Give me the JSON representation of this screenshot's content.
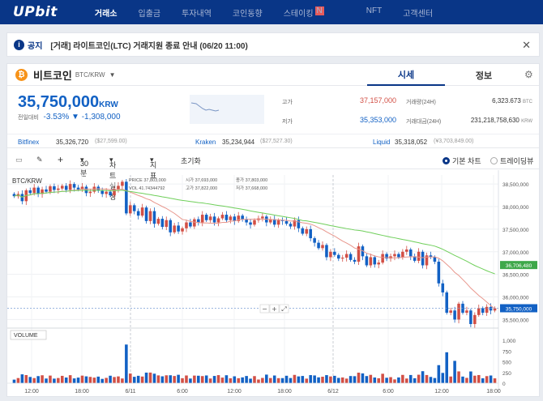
{
  "brand": "UPbit",
  "nav": [
    "거래소",
    "입출금",
    "투자내역",
    "코인동향",
    "스테이킹",
    "NFT",
    "고객센터"
  ],
  "nav_badge": "N",
  "notice": {
    "label": "공지",
    "text": "[거래] 라이트코인(LTC) 거래지원 종료 안내 (06/20 11:00)",
    "icon": "i",
    "close": "✕"
  },
  "coin": {
    "name": "비트코인",
    "pair": "BTC/KRW",
    "symbol": "₿"
  },
  "tabs": [
    "시세",
    "정보"
  ],
  "price": {
    "value": "35,750,000",
    "unit": "KRW",
    "label": "전일대비",
    "pct": "-3.53%",
    "chg": "▼ -1,308,000"
  },
  "stats": {
    "high_label": "고가",
    "high": "37,157,000",
    "low_label": "저가",
    "low": "35,353,000",
    "vol_label": "거래량(24H)",
    "vol": "6,323.673",
    "vol_unit": "BTC",
    "amt_label": "거래대금(24H)",
    "amt": "231,218,758,630",
    "amt_unit": "KRW"
  },
  "exchanges": [
    {
      "name": "Bitfinex",
      "value": "35,326,720",
      "usd": "($27,599.00)"
    },
    {
      "name": "Kraken",
      "value": "35,234,944",
      "usd": "($27,527.30)"
    },
    {
      "name": "Liquid",
      "value": "35,318,052",
      "usd": "(¥3,703,849.00)"
    }
  ],
  "toolbar": {
    "interval": "30분",
    "chart_settings": "차트설정",
    "indicator": "지표",
    "reset": "초기화",
    "basic": "기본 차트",
    "tradingview": "트레이딩뷰"
  },
  "chart_data": {
    "type": "candlestick",
    "pair_label": "BTC/KRW",
    "ohlc_labels": {
      "price": "PRICE",
      "price_val": "37,803,000",
      "open": "시가",
      "open_val": "37,693,000",
      "close": "종가",
      "close_val": "37,803,000",
      "vol": "VOL",
      "vol_val": "41.74344792",
      "high": "고가",
      "high_val": "37,822,000",
      "low": "저가",
      "low_val": "37,668,000"
    },
    "y_ticks": [
      "38,500,000",
      "38,000,000",
      "37,500,000",
      "37,000,000",
      "36,500,000",
      "36,000,000",
      "35,500,000"
    ],
    "ylim": [
      35400000,
      38700000
    ],
    "x_ticks": [
      "12:00",
      "18:00",
      "6/11",
      "6:00",
      "12:00",
      "18:00",
      "6/12",
      "6:00",
      "12:00",
      "18:00"
    ],
    "ma_long_tag": "36,706,480",
    "current_tag": "35,750,000",
    "volume_label": "VOLUME",
    "vol_ticks": [
      "1,000",
      "750",
      "500",
      "250",
      "0"
    ],
    "zoom": {
      "minus": "−",
      "plus": "+",
      "expand": "⤢"
    },
    "closes": [
      38230000,
      38280000,
      38120000,
      38360000,
      38300000,
      38420000,
      38280000,
      38380000,
      38330000,
      38450000,
      38370000,
      38400000,
      38460000,
      38370000,
      38500000,
      38420000,
      38380000,
      38440000,
      38300000,
      38330000,
      38440000,
      38360000,
      38280000,
      38330000,
      38250000,
      38380000,
      38460000,
      38550000,
      37850000,
      38030000,
      37900000,
      37800000,
      37980000,
      37680000,
      37900000,
      37620000,
      37730000,
      37550000,
      37700000,
      37430000,
      37580000,
      37450000,
      37520000,
      37650000,
      37560000,
      37720000,
      37650000,
      37820000,
      37700000,
      37780000,
      37650000,
      37740000,
      37820000,
      37700000,
      37780000,
      37680000,
      37800000,
      37720000,
      37650000,
      37600000,
      37700000,
      37740000,
      37780000,
      37650000,
      37720000,
      37600000,
      37700000,
      37680000,
      37620000,
      37560000,
      37700000,
      37520000,
      37400000,
      37500000,
      37300000,
      37200000,
      37080000,
      37150000,
      36880000,
      37000000,
      36930000,
      36850000,
      36870000,
      36950000,
      36820000,
      36780000,
      37120000,
      36900000,
      36700000,
      36880000,
      36720000,
      36760000,
      36950000,
      36850000,
      36900000,
      36950000,
      36880000,
      37000000,
      37050000,
      36900000,
      36800000,
      37000000,
      36700000,
      36920000,
      36880000,
      36780000,
      36300000,
      36100000,
      35650000,
      35700000,
      35500000,
      35850000,
      35650000,
      35700000,
      35400000,
      35600000,
      35750000,
      35650000,
      35780000,
      35700000,
      35750000
    ]
  }
}
